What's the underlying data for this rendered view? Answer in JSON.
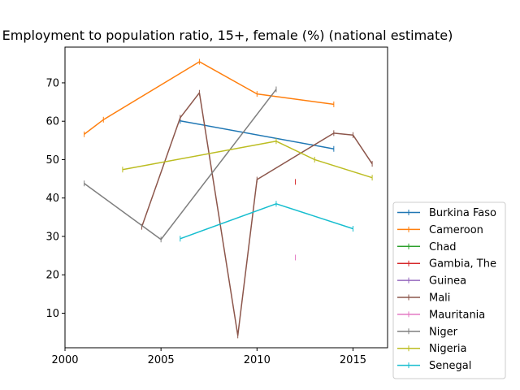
{
  "chart_data": {
    "type": "line",
    "title": "Employment to population ratio, 15+, female (%) (national estimate)",
    "xlabel": "",
    "ylabel": "",
    "xlim": [
      2000,
      2016.8
    ],
    "ylim": [
      1,
      79.3
    ],
    "xticks": [
      2000,
      2005,
      2010,
      2015
    ],
    "yticks": [
      10,
      20,
      30,
      40,
      50,
      60,
      70
    ],
    "grid": false,
    "legend_position": "right, outside plot area",
    "series": [
      {
        "name": "Burkina Faso",
        "color": "#1f77b4",
        "points": [
          [
            2006,
            60.1
          ],
          [
            2014,
            52.8
          ]
        ]
      },
      {
        "name": "Cameroon",
        "color": "#ff7f0e",
        "points": [
          [
            2001,
            56.6
          ],
          [
            2002,
            60.4
          ],
          [
            2007,
            75.5
          ],
          [
            2010,
            67.1
          ],
          [
            2014,
            64.4
          ]
        ]
      },
      {
        "name": "Chad",
        "color": "#2ca02c",
        "points": []
      },
      {
        "name": "Gambia, The",
        "color": "#d62728",
        "points": [
          [
            2012,
            44.2
          ]
        ]
      },
      {
        "name": "Guinea",
        "color": "#9467bd",
        "points": []
      },
      {
        "name": "Mali",
        "color": "#8c564b",
        "points": [
          [
            2004,
            32.5
          ],
          [
            2006,
            60.9
          ],
          [
            2007,
            67.4
          ],
          [
            2009,
            4.2
          ],
          [
            2010,
            44.8
          ],
          [
            2014,
            56.9
          ],
          [
            2015,
            56.4
          ],
          [
            2016,
            48.9
          ]
        ]
      },
      {
        "name": "Mauritania",
        "color": "#e377c2",
        "points": [
          [
            2012,
            24.5
          ]
        ]
      },
      {
        "name": "Niger",
        "color": "#7f7f7f",
        "points": [
          [
            2001,
            43.8
          ],
          [
            2005,
            29.2
          ],
          [
            2011,
            68.3
          ]
        ]
      },
      {
        "name": "Nigeria",
        "color": "#bcbd22",
        "points": [
          [
            2003,
            47.4
          ],
          [
            2011,
            54.8
          ],
          [
            2013,
            50.0
          ],
          [
            2016,
            45.3
          ]
        ]
      },
      {
        "name": "Senegal",
        "color": "#17becf",
        "points": [
          [
            2006,
            29.4
          ],
          [
            2011,
            38.5
          ],
          [
            2015,
            32.0
          ]
        ]
      }
    ]
  }
}
